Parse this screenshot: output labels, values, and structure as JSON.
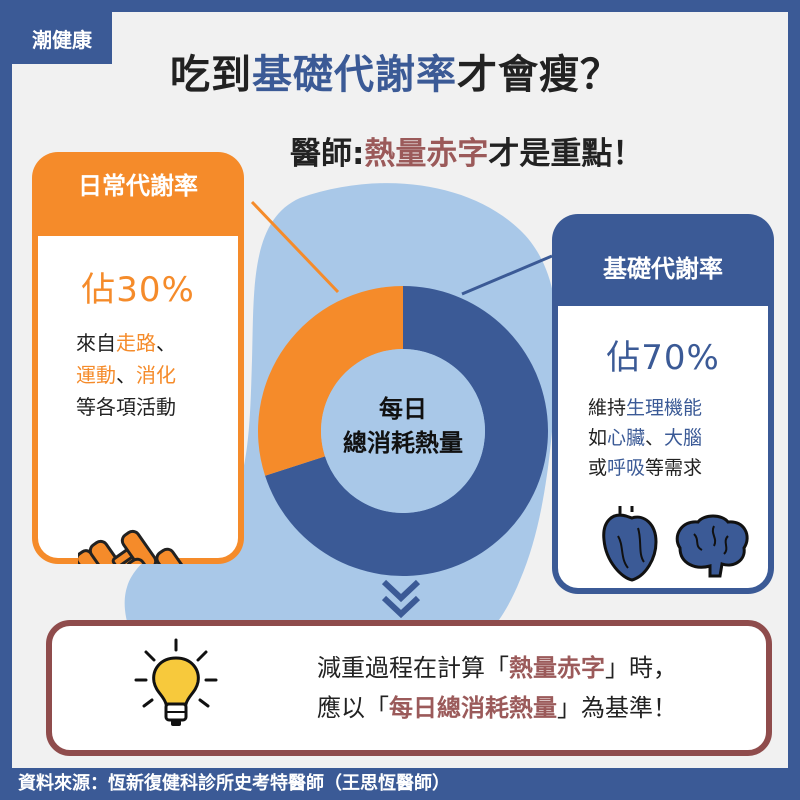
{
  "logo": "潮健康",
  "title": {
    "prefix": "吃到",
    "highlight": "基礎代謝率",
    "suffix": "才會瘦？"
  },
  "subtitle": {
    "prefix": "醫師:",
    "highlight": "熱量赤字",
    "suffix": "才是重點！"
  },
  "left_box": {
    "header": "日常代謝率",
    "percent": "佔30%",
    "desc": {
      "l1a": "來自",
      "l1b": "走路",
      "l1c": "、",
      "l2a": "運動",
      "l2b": "、",
      "l2c": "消化",
      "l3": "等各項活動"
    },
    "icon": "dumbbell-icon"
  },
  "right_box": {
    "header": "基礎代謝率",
    "percent": "佔70%",
    "desc": {
      "l1a": "維持",
      "l1b": "生理機能",
      "l2a": "如",
      "l2b": "心臟",
      "l2c": "、",
      "l2d": "大腦",
      "l3a": "或",
      "l3b": "呼吸",
      "l3c": "等需求"
    },
    "icons": [
      "heart-icon",
      "brain-icon"
    ]
  },
  "donut": {
    "center_line1": "每日",
    "center_line2": "總消耗熱量",
    "segments": [
      {
        "label": "基礎代謝率",
        "value": 70,
        "color": "#3b5a96"
      },
      {
        "label": "日常代謝率",
        "value": 30,
        "color": "#f58b2a"
      }
    ]
  },
  "bottom": {
    "l1a": "減重過程在計算「",
    "l1b": "熱量赤字",
    "l1c": "」時，",
    "l2a": "應以「",
    "l2b": "每日總消耗熱量",
    "l2c": "」為基準！",
    "icon": "lightbulb-icon"
  },
  "source": "資料來源：恆新復健科診所史考特醫師（王思恆醫師）",
  "colors": {
    "navy": "#3b5a96",
    "orange": "#f58b2a",
    "maroon": "#8f4c4c",
    "light_blue": "#a9c8e8"
  }
}
